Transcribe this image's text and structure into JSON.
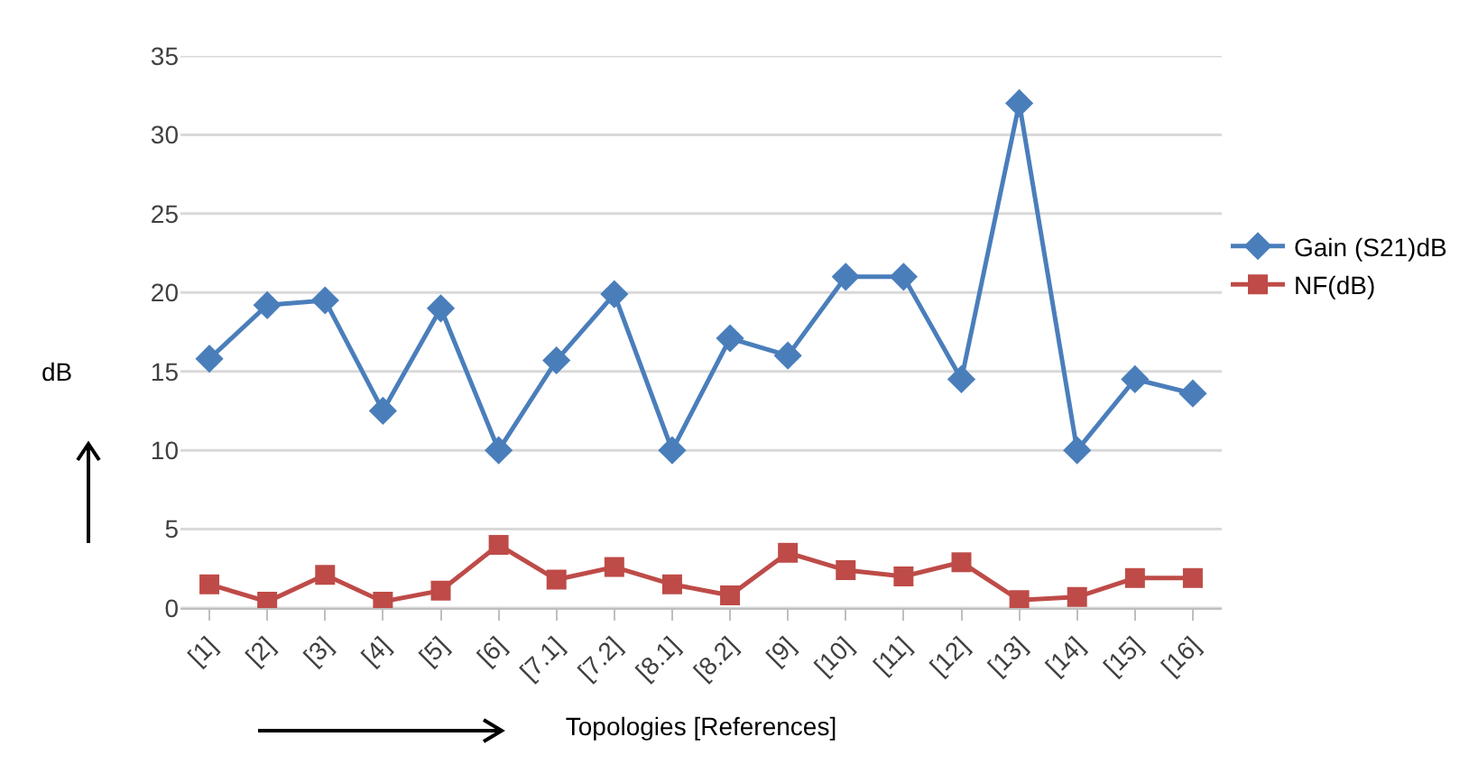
{
  "chart_data": {
    "type": "line",
    "xlabel": "Topologies [References]",
    "ylabel": "dB",
    "categories": [
      "[1]",
      "[2]",
      "[3]",
      "[4]",
      "[5]",
      "[6]",
      "[7.1]",
      "[7.2]",
      "[8.1]",
      "[8.2]",
      "[9]",
      "[10]",
      "[11]",
      "[12]",
      "[13]",
      "[14]",
      "[15]",
      "[16]"
    ],
    "series": [
      {
        "name": "Gain (S21)dB",
        "color": "#4a7ebb",
        "marker": "diamond",
        "values": [
          15.8,
          19.2,
          19.5,
          12.5,
          19,
          10,
          15.7,
          19.9,
          10,
          17.1,
          16,
          21,
          21,
          14.5,
          32,
          10,
          14.5,
          13.6
        ]
      },
      {
        "name": "NF(dB)",
        "color": "#be4b48",
        "marker": "square",
        "values": [
          1.5,
          0.4,
          2.1,
          0.4,
          1.1,
          4.0,
          1.8,
          2.6,
          1.5,
          0.8,
          3.5,
          2.4,
          2.0,
          2.9,
          0.5,
          0.7,
          1.9,
          1.9
        ]
      }
    ],
    "ylim": [
      0,
      35
    ],
    "yticks": [
      0,
      5,
      10,
      15,
      20,
      25,
      30,
      35
    ],
    "grid": "y",
    "legend": "right",
    "line_style": "solid"
  }
}
